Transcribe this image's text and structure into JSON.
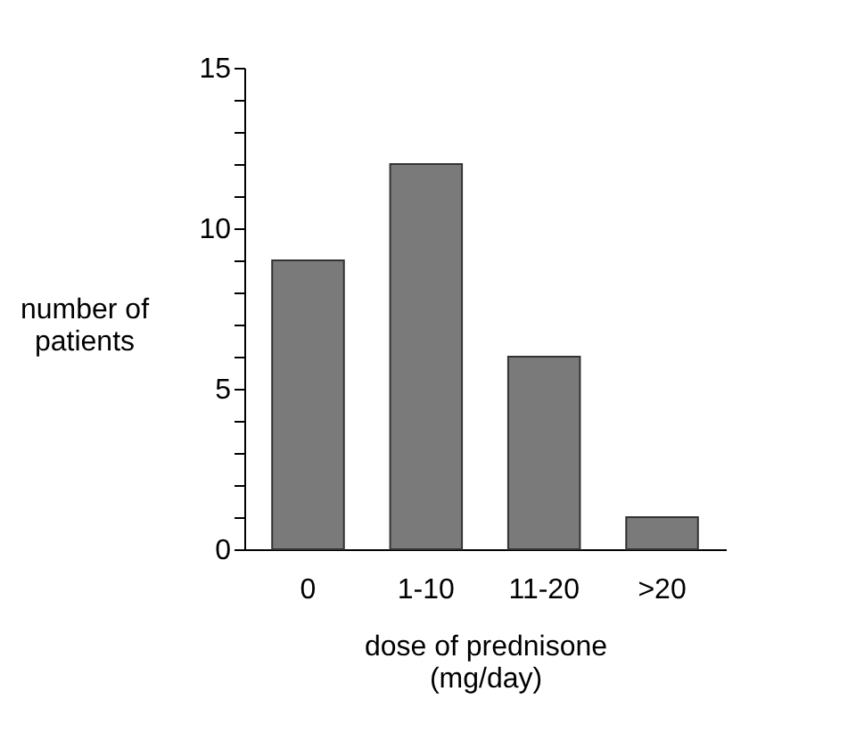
{
  "chart_data": {
    "type": "bar",
    "xlabel": "dose of prednisone\n(mg/day)",
    "ylabel": "number of\npatients",
    "categories": [
      "0",
      "1-10",
      "11-20",
      ">20"
    ],
    "values": [
      9,
      12,
      6,
      1
    ],
    "color": "#7a7a7a",
    "ylim": [
      0,
      15
    ],
    "yticks": [
      0,
      {
        "value": 1,
        "label": null
      },
      {
        "value": 2,
        "label": null
      },
      {
        "value": 3,
        "label": null
      },
      {
        "value": 4,
        "label": null
      },
      5,
      {
        "value": 6,
        "label": null
      },
      {
        "value": 7,
        "label": null
      },
      {
        "value": 8,
        "label": null
      },
      {
        "value": 9,
        "label": null
      },
      10,
      {
        "value": 11,
        "label": null
      },
      {
        "value": 12,
        "label": null
      },
      {
        "value": 13,
        "label": null
      },
      {
        "value": 14,
        "label": null
      },
      15
    ],
    "grid": false
  }
}
